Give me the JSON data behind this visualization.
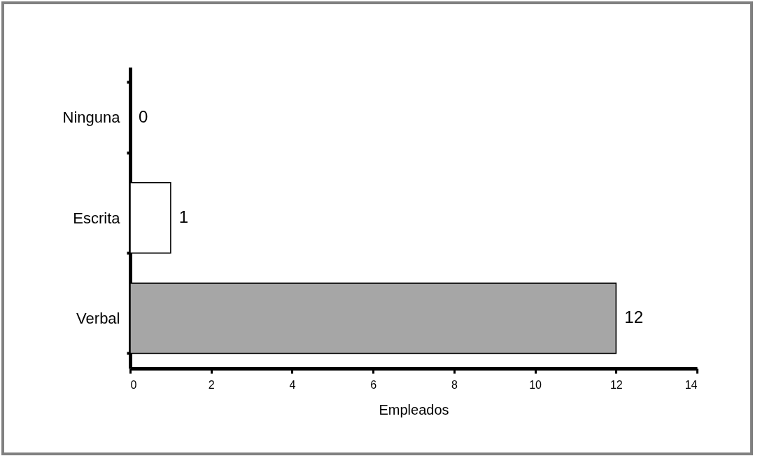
{
  "chart_data": {
    "type": "bar",
    "orientation": "horizontal",
    "categories": [
      "Ninguna",
      "Escrita",
      "Verbal"
    ],
    "values": [
      0,
      1,
      12
    ],
    "colors": [
      "#ffffff",
      "#ffffff",
      "#a6a6a6"
    ],
    "xlim": [
      0,
      14
    ],
    "xticks": [
      0,
      2,
      4,
      6,
      8,
      10,
      12,
      14
    ],
    "xlabel": "Empleados",
    "data_labels": true,
    "grid": false
  }
}
